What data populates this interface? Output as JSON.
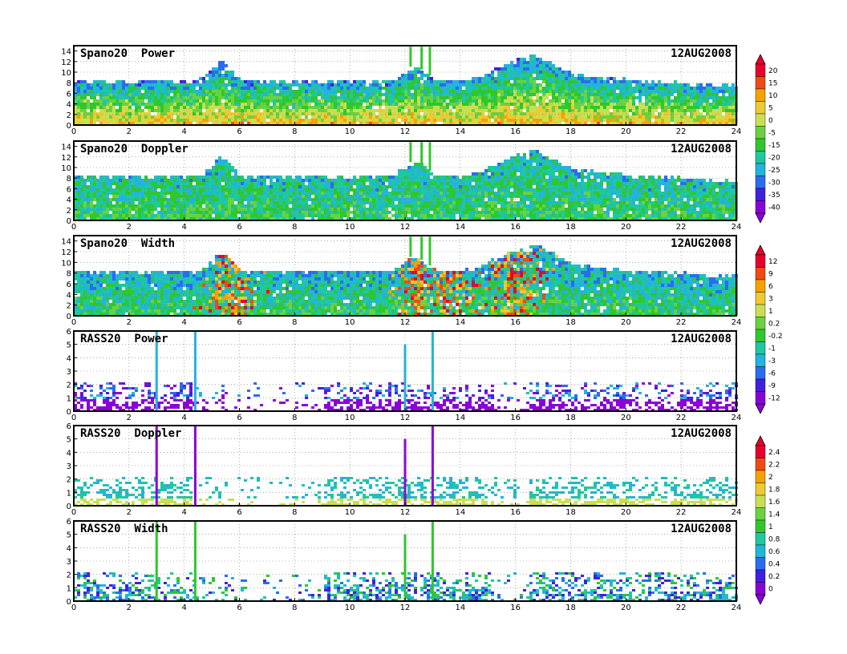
{
  "chart_data": [
    {
      "type": "heatmap",
      "title": "Spano20  Power",
      "date": "12AUG2008",
      "x_range": [
        0,
        24
      ],
      "x_ticks": [
        "0",
        "2",
        "4",
        "6",
        "8",
        "10",
        "12",
        "14",
        "16",
        "18",
        "20",
        "22",
        "24"
      ],
      "y_range": [
        0,
        15
      ],
      "y_ticks": [
        "0",
        "2",
        "4",
        "6",
        "8",
        "10",
        "12",
        "14"
      ],
      "grid": true,
      "colorbar": [
        "20",
        "15",
        "10",
        "5",
        "0",
        "-5",
        "-15",
        "-20",
        "-25",
        "-30",
        "-35",
        "-40"
      ]
    },
    {
      "type": "heatmap",
      "title": "Spano20  Doppler",
      "date": "12AUG2008",
      "x_range": [
        0,
        24
      ],
      "x_ticks": [
        "0",
        "2",
        "4",
        "6",
        "8",
        "10",
        "12",
        "14",
        "16",
        "18",
        "20",
        "22",
        "24"
      ],
      "y_range": [
        0,
        15
      ],
      "y_ticks": [
        "0",
        "2",
        "4",
        "6",
        "8",
        "10",
        "12",
        "14"
      ],
      "grid": true
    },
    {
      "type": "heatmap",
      "title": "Spano20  Width",
      "date": "12AUG2008",
      "x_range": [
        0,
        24
      ],
      "x_ticks": [
        "0",
        "2",
        "4",
        "6",
        "8",
        "10",
        "12",
        "14",
        "16",
        "18",
        "20",
        "22",
        "24"
      ],
      "y_range": [
        0,
        15
      ],
      "y_ticks": [
        "0",
        "2",
        "4",
        "6",
        "8",
        "10",
        "12",
        "14"
      ],
      "grid": true,
      "colorbar": [
        "12",
        "9",
        "6",
        "3",
        "1",
        "0.2",
        "-0.2",
        "-1",
        "-3",
        "-6",
        "-9",
        "-12"
      ]
    },
    {
      "type": "heatmap",
      "title": "RASS20  Power",
      "date": "12AUG2008",
      "x_range": [
        0,
        24
      ],
      "x_ticks": [
        "0",
        "2",
        "4",
        "6",
        "8",
        "10",
        "12",
        "14",
        "16",
        "18",
        "20",
        "22",
        "24"
      ],
      "y_range": [
        0,
        6
      ],
      "y_ticks": [
        "0",
        "1",
        "2",
        "3",
        "4",
        "5",
        "6"
      ],
      "grid": true
    },
    {
      "type": "heatmap",
      "title": "RASS20  Doppler",
      "date": "12AUG2008",
      "x_range": [
        0,
        24
      ],
      "x_ticks": [
        "0",
        "2",
        "4",
        "6",
        "8",
        "10",
        "12",
        "14",
        "16",
        "18",
        "20",
        "22",
        "24"
      ],
      "y_range": [
        0,
        6
      ],
      "y_ticks": [
        "0",
        "1",
        "2",
        "3",
        "4",
        "5",
        "6"
      ],
      "grid": true,
      "colorbar": [
        "2.4",
        "2.2",
        "2",
        "1.8",
        "1.6",
        "1.4",
        "1",
        "0.8",
        "0.6",
        "0.4",
        "0.2",
        "0"
      ]
    },
    {
      "type": "heatmap",
      "title": "RASS20  Width",
      "date": "12AUG2008",
      "x_range": [
        0,
        24
      ],
      "x_ticks": [
        "0",
        "2",
        "4",
        "6",
        "8",
        "10",
        "12",
        "14",
        "16",
        "18",
        "20",
        "22",
        "24"
      ],
      "y_range": [
        0,
        6
      ],
      "y_ticks": [
        "0",
        "1",
        "2",
        "3",
        "4",
        "5",
        "6"
      ],
      "grid": true
    }
  ],
  "colors": {
    "power_scale": [
      "#e8002a",
      "#f04a14",
      "#f5a200",
      "#f0c832",
      "#c8e050",
      "#6ad240",
      "#2ec82c",
      "#1ec8a0",
      "#22b4dc",
      "#2a6cf0",
      "#4020e0",
      "#8a00d8"
    ],
    "width_scale": [
      "#e8002a",
      "#f04a14",
      "#f5a200",
      "#f0c832",
      "#c8e050",
      "#6ad240",
      "#2ec82c",
      "#1ec8a0",
      "#22b4dc",
      "#2a6cf0",
      "#4020e0",
      "#8a00d8"
    ],
    "rass_scale": [
      "#e8002a",
      "#f04a14",
      "#f5a200",
      "#f0c832",
      "#c8e050",
      "#6ad240",
      "#2ec82c",
      "#1ec8a0",
      "#22b4dc",
      "#2a6cf0",
      "#4020e0",
      "#8a00d8"
    ]
  }
}
